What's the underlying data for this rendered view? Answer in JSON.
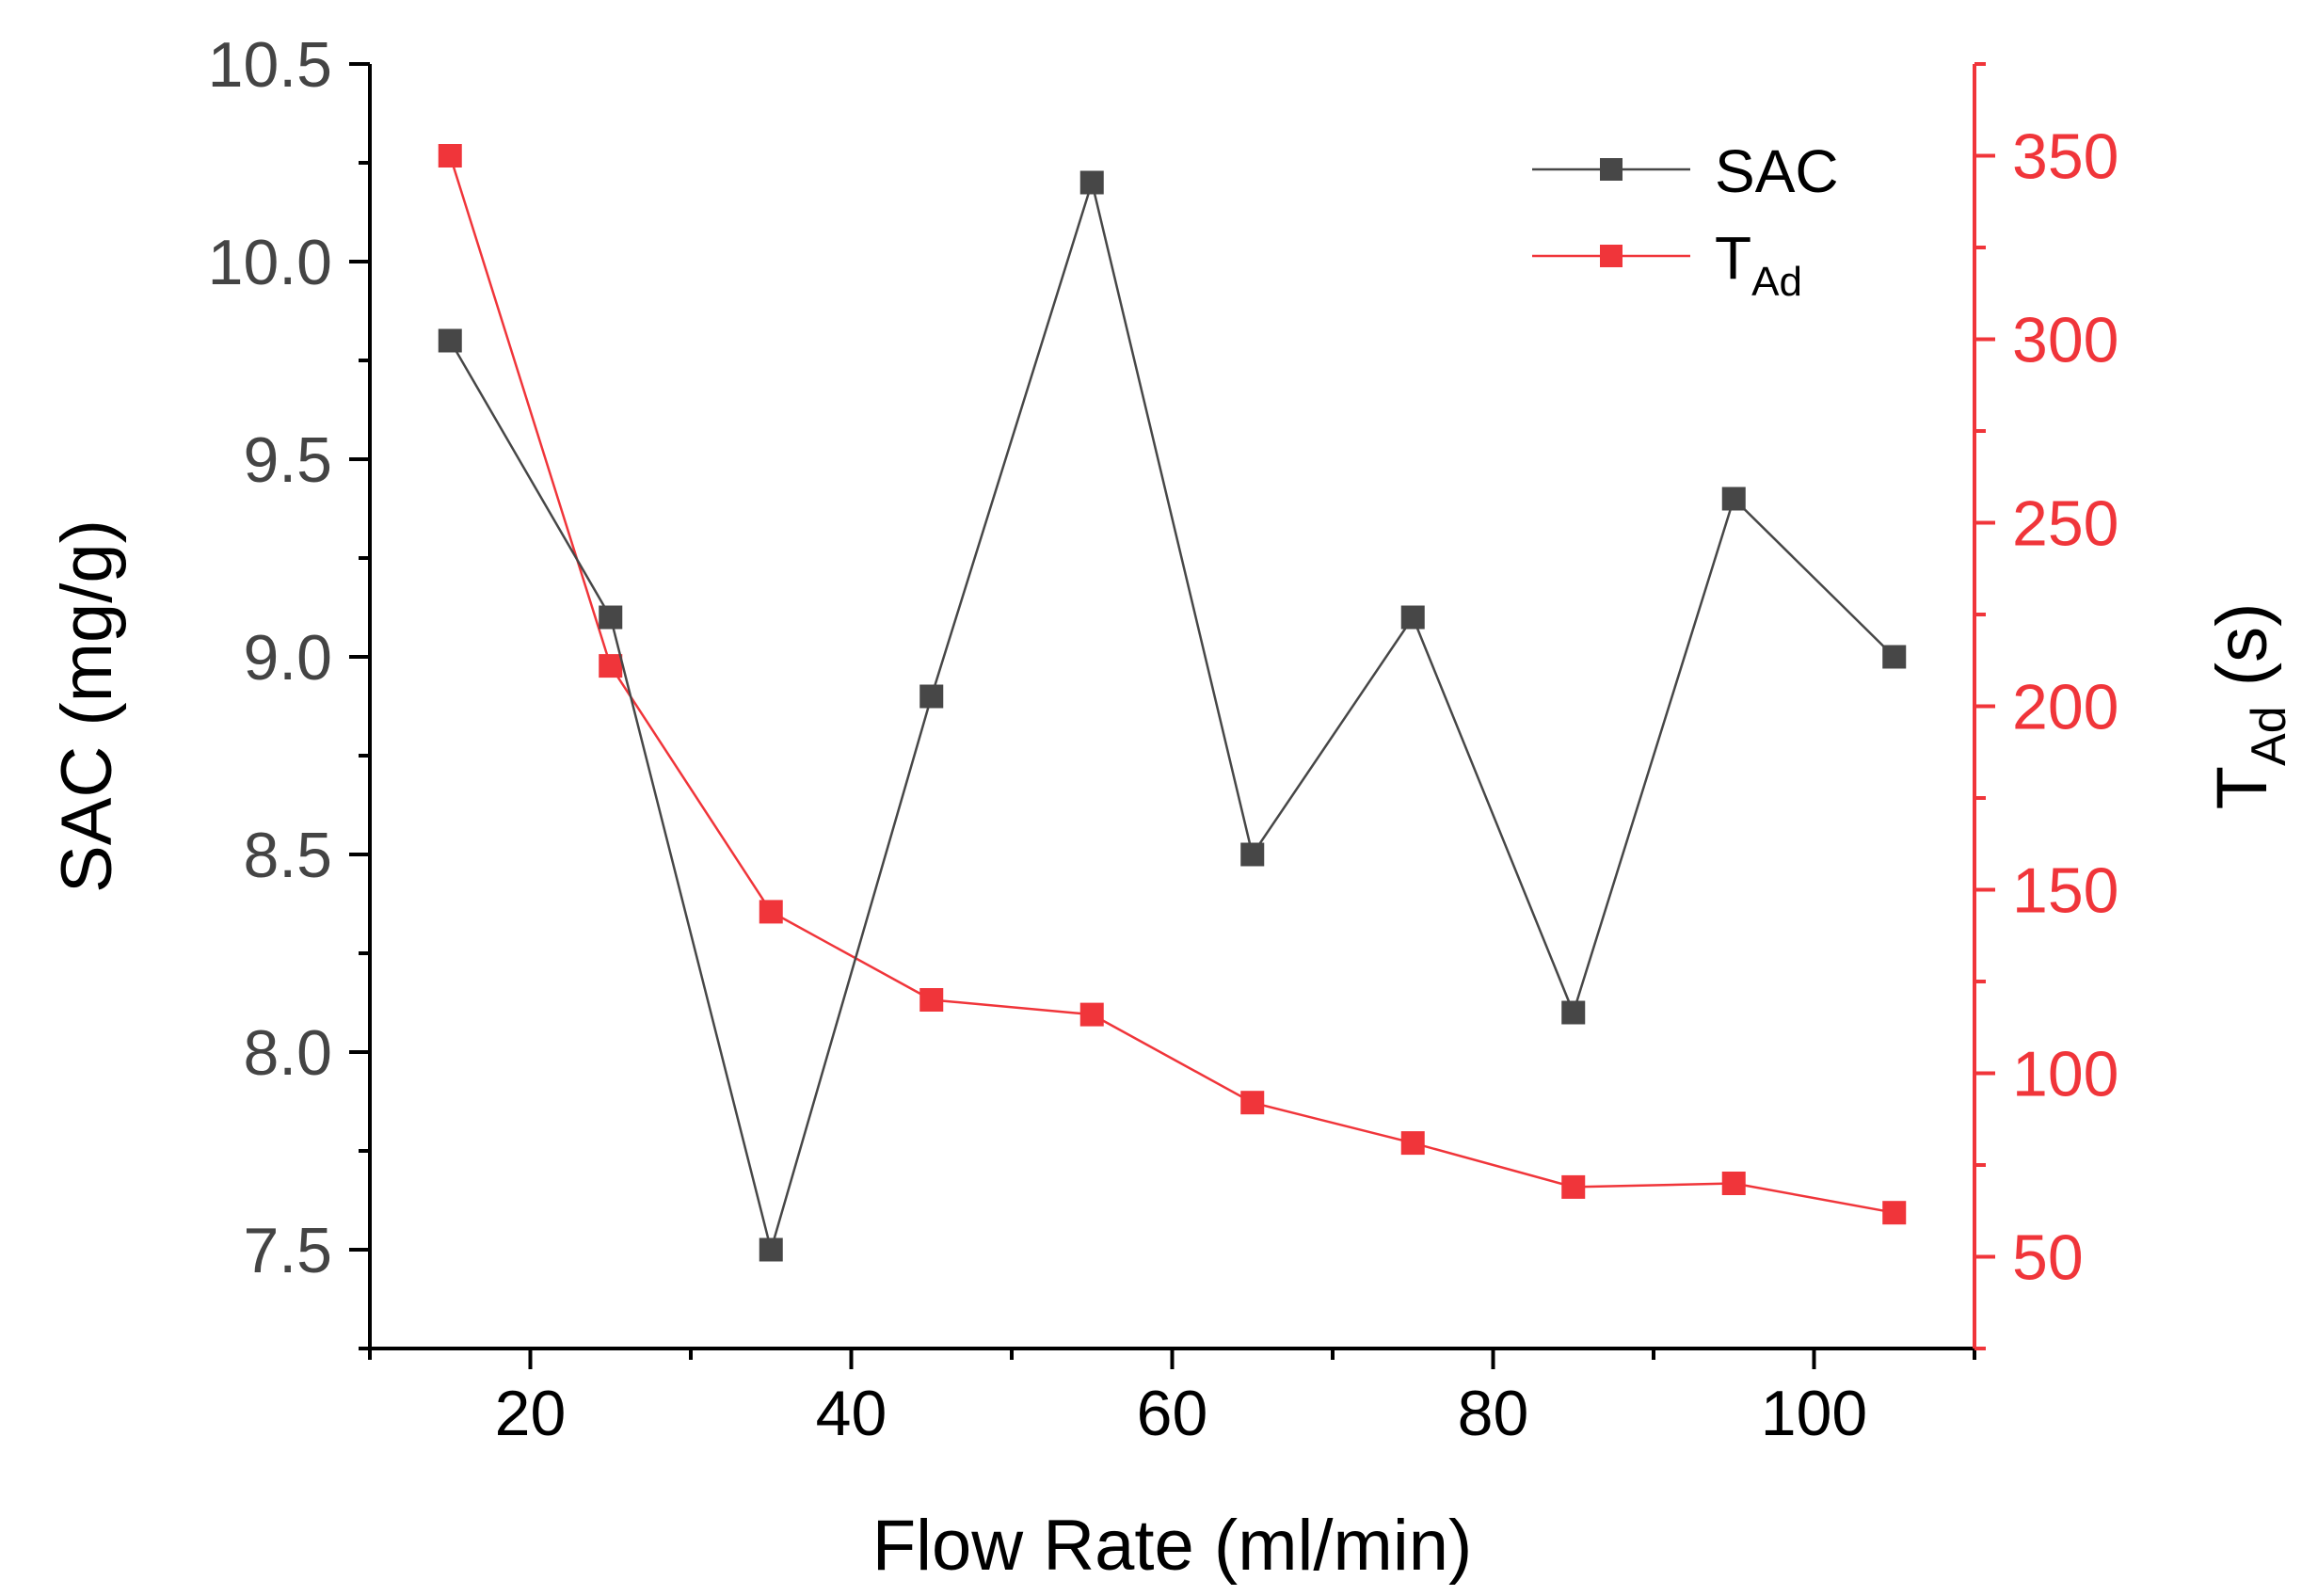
{
  "chart_data": {
    "type": "line",
    "xlabel": "Flow Rate (ml/min)",
    "ylabel": "SAC (mg/g)",
    "y2label": {
      "main": "T",
      "sub": "Ad",
      "suffix": " (s)"
    },
    "xlim": [
      10,
      110
    ],
    "ylim": [
      7.25,
      10.5
    ],
    "y2lim": [
      25,
      375
    ],
    "xticks": [
      20,
      40,
      60,
      80,
      100
    ],
    "yticks": [
      "7.5",
      "8.0",
      "8.5",
      "9.0",
      "9.5",
      "10.0",
      "10.5"
    ],
    "y2ticks": [
      50,
      100,
      150,
      200,
      250,
      300,
      350
    ],
    "grid": false,
    "legend_position": "top-right",
    "colors": {
      "sac": "#474747",
      "tad": "#f0353a",
      "axis": "#000000"
    },
    "series": [
      {
        "key": "sac",
        "name": "SAC",
        "axis": "left",
        "x": [
          15,
          25,
          35,
          45,
          55,
          65,
          75,
          85,
          95,
          105
        ],
        "values": [
          9.8,
          9.1,
          7.5,
          8.9,
          10.2,
          8.5,
          9.1,
          8.1,
          9.4,
          9.0
        ]
      },
      {
        "key": "tad",
        "name": "T",
        "name_sub": "Ad",
        "axis": "right",
        "x": [
          15,
          25,
          35,
          45,
          55,
          65,
          75,
          85,
          95,
          105
        ],
        "values": [
          350,
          211,
          144,
          120,
          116,
          92,
          81,
          69,
          70,
          62
        ]
      }
    ]
  }
}
